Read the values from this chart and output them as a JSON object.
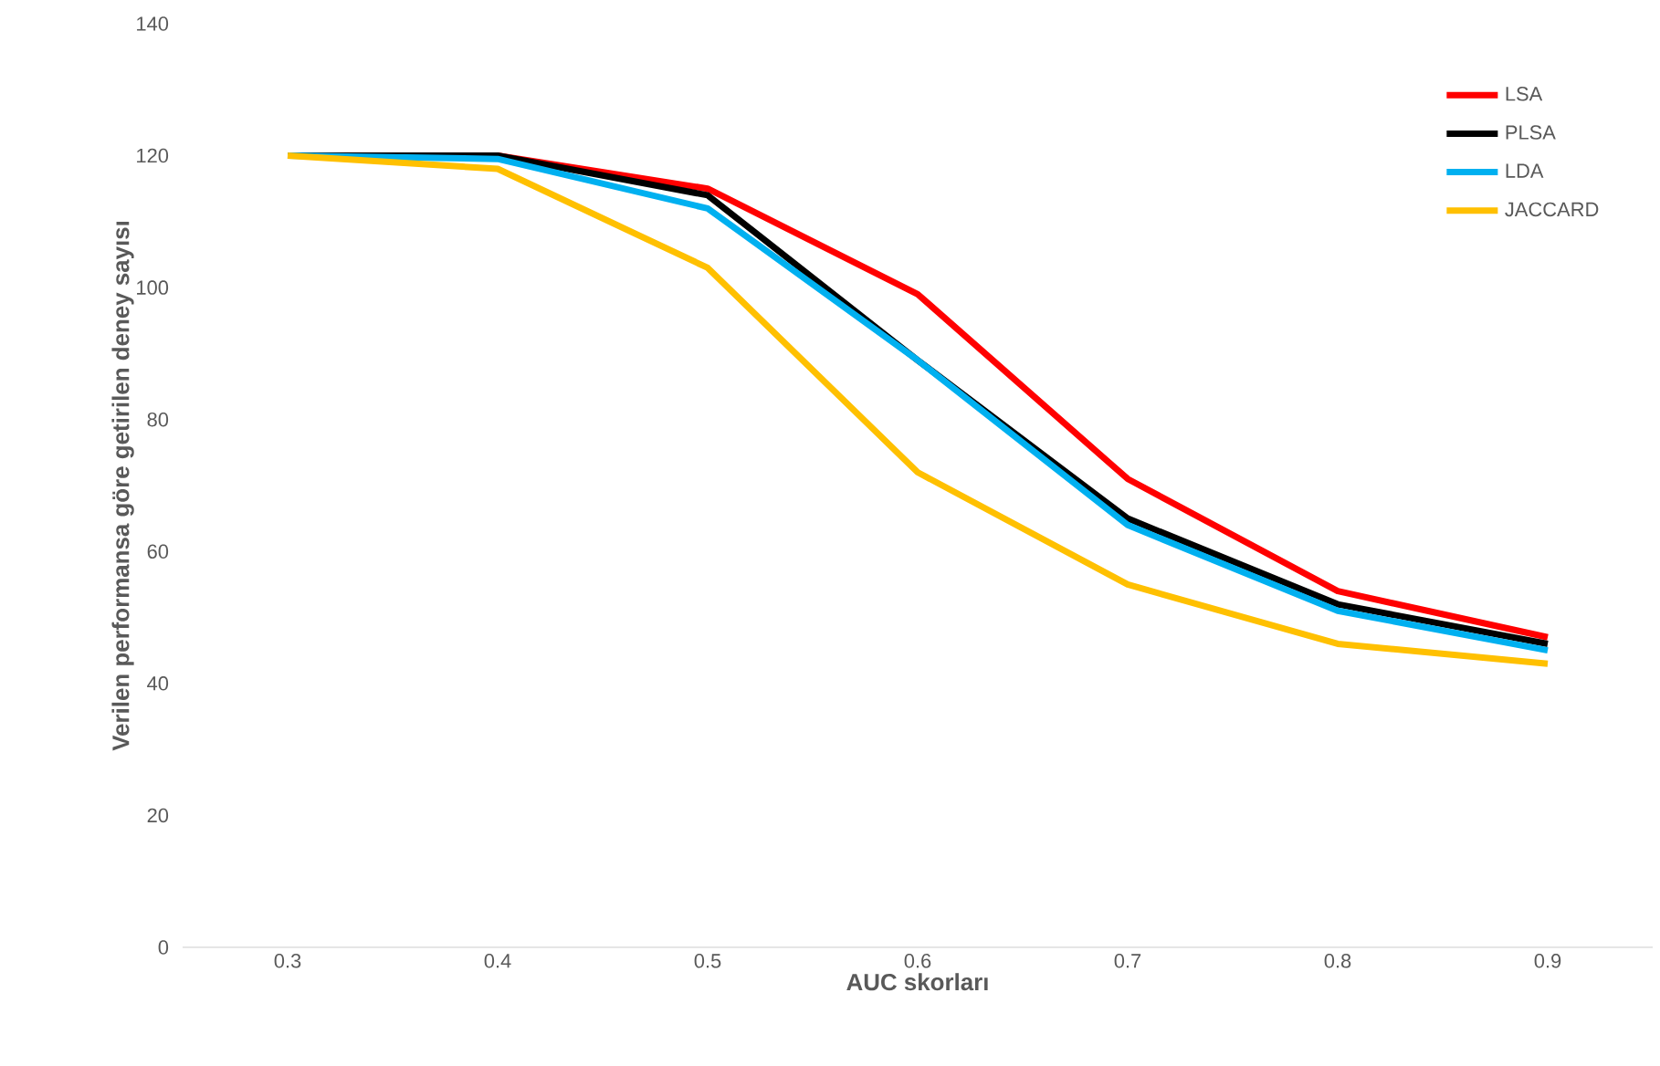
{
  "chart_data": {
    "type": "line",
    "xlabel": "AUC skorları",
    "ylabel": "Verilen performansa göre getirilen deney sayısı",
    "categories": [
      "0.3",
      "0.4",
      "0.5",
      "0.6",
      "0.7",
      "0.8",
      "0.9"
    ],
    "ylim": [
      0,
      140
    ],
    "yticks": [
      0,
      20,
      40,
      60,
      80,
      100,
      120,
      140
    ],
    "grid": false,
    "legend": "top right",
    "marker": "none",
    "line_style": "solid",
    "series": [
      {
        "name": "LSA",
        "color": "#ff0000",
        "values": [
          120,
          120,
          115,
          99,
          71,
          54,
          47
        ]
      },
      {
        "name": "PLSA",
        "color": "#000000",
        "values": [
          120,
          120,
          114,
          89,
          65,
          52,
          46
        ]
      },
      {
        "name": "LDA",
        "color": "#00b0f0",
        "values": [
          120,
          119.5,
          112,
          89,
          64,
          51,
          45
        ]
      },
      {
        "name": "JACCARD",
        "color": "#ffc000",
        "values": [
          120,
          118,
          103,
          72,
          55,
          46,
          43
        ]
      }
    ]
  }
}
